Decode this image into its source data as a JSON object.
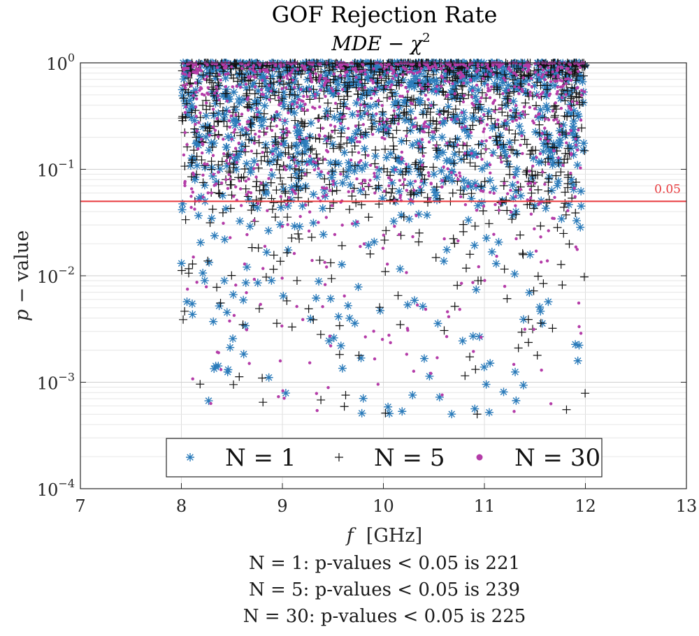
{
  "chart_data": {
    "type": "scatter",
    "title": "GOF Rejection Rate",
    "subtitle": "MDE − χ",
    "subtitle_sup": "2",
    "xlabel_var": "f",
    "xlabel_unit": "[GHz]",
    "ylabel_var": "p",
    "ylabel_rest": " − value",
    "xlim": [
      7,
      13
    ],
    "ylim": [
      0.0001,
      1
    ],
    "yscale": "log",
    "xticks": [
      "7",
      "8",
      "9",
      "10",
      "11",
      "12",
      "13"
    ],
    "yticks": [
      {
        "base": "10",
        "exp": "0"
      },
      {
        "base": "10",
        "exp": "−1"
      },
      {
        "base": "10",
        "exp": "−2"
      },
      {
        "base": "10",
        "exp": "−3"
      },
      {
        "base": "10",
        "exp": "−4"
      }
    ],
    "grid": true,
    "reference_line": {
      "y": 0.05,
      "label": "0.05",
      "color": "#e8393c"
    },
    "x_data_range": [
      8,
      12
    ],
    "series": [
      {
        "name": "N = 1",
        "marker": "asterisk",
        "color": "#2b7bba",
        "below_threshold_count": 221
      },
      {
        "name": "N = 5",
        "marker": "plus",
        "color": "#111111",
        "below_threshold_count": 239
      },
      {
        "name": "N = 30",
        "marker": "dot",
        "color": "#b43ca8",
        "below_threshold_count": 225
      }
    ],
    "legend_location": "bottom-center",
    "summary_lines": [
      "N = 1: p-values < 0.05 is 221",
      "N = 5: p-values < 0.05 is 239",
      "N = 30: p-values < 0.05 is 225"
    ]
  }
}
